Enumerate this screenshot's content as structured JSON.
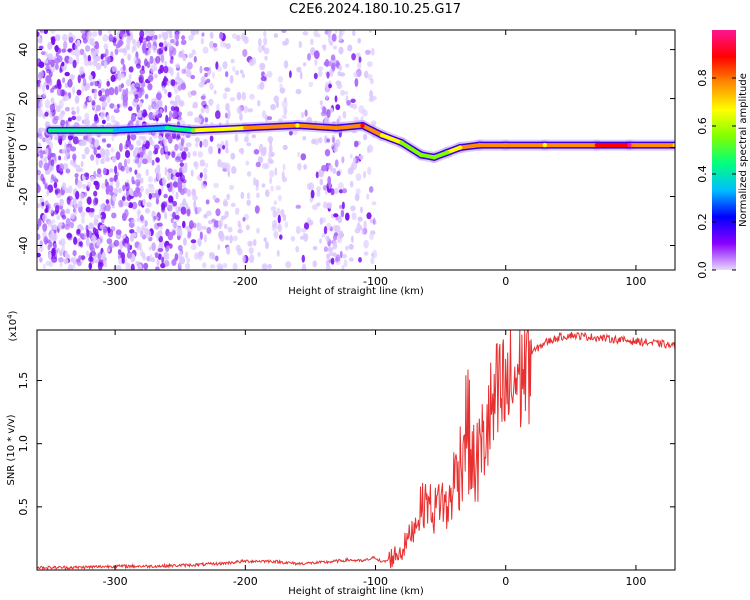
{
  "title": "C2E6.2024.180.10.25.G17",
  "chart_data": [
    {
      "type": "heatmap",
      "xlabel": "Height of straight line (km)",
      "ylabel": "Frequency (Hz)",
      "xlim": [
        -360,
        130
      ],
      "ylim": [
        -50,
        48
      ],
      "xticks": [
        -300,
        -200,
        -100,
        0,
        100
      ],
      "yticks": [
        -40,
        -20,
        0,
        20,
        40
      ],
      "colorbar": {
        "label": "Normalized spectral amplitude",
        "range": [
          0.0,
          1.0
        ],
        "ticks": [
          "0.0",
          "0.2",
          "0.4",
          "0.6",
          "0.8"
        ],
        "colors": [
          "#e8d8ff",
          "#8a00ff",
          "#0000ff",
          "#00bfff",
          "#00ff7f",
          "#7fff00",
          "#ffff00",
          "#ff8c00",
          "#ff0000",
          "#ff1493"
        ]
      },
      "ridge": [
        {
          "x": -350,
          "y": 7,
          "amp": 0.45
        },
        {
          "x": -300,
          "y": 7,
          "amp": 0.35
        },
        {
          "x": -260,
          "y": 8,
          "amp": 0.4
        },
        {
          "x": -240,
          "y": 7,
          "amp": 0.55
        },
        {
          "x": -200,
          "y": 8,
          "amp": 0.75
        },
        {
          "x": -160,
          "y": 9,
          "amp": 0.7
        },
        {
          "x": -130,
          "y": 8,
          "amp": 0.8
        },
        {
          "x": -110,
          "y": 9,
          "amp": 0.85
        },
        {
          "x": -95,
          "y": 5,
          "amp": 0.7
        },
        {
          "x": -80,
          "y": 2,
          "amp": 0.6
        },
        {
          "x": -65,
          "y": -3,
          "amp": 0.55
        },
        {
          "x": -55,
          "y": -4,
          "amp": 0.5
        },
        {
          "x": -45,
          "y": -2,
          "amp": 0.6
        },
        {
          "x": -35,
          "y": 0,
          "amp": 0.7
        },
        {
          "x": -20,
          "y": 1,
          "amp": 0.8
        },
        {
          "x": 0,
          "y": 1,
          "amp": 0.75
        },
        {
          "x": 30,
          "y": 1,
          "amp": 0.7
        },
        {
          "x": 70,
          "y": 1,
          "amp": 0.85
        },
        {
          "x": 95,
          "y": 1,
          "amp": 0.95
        },
        {
          "x": 130,
          "y": 1,
          "amp": 0.7
        }
      ]
    },
    {
      "type": "line",
      "xlabel": "Height of straight line (km)",
      "ylabel": "SNR (10 * v/v)",
      "yscale_label": "(x10",
      "yscale_exp": "4",
      "xlim": [
        -360,
        130
      ],
      "ylim": [
        0,
        1.9
      ],
      "xticks": [
        -300,
        -200,
        -100,
        0,
        100
      ],
      "yticks": [
        0.5,
        1.0,
        1.5
      ],
      "ytick_labels": [
        "0.5",
        "1.0",
        "1.5"
      ],
      "series": [
        {
          "color": "#e83030",
          "x": [
            -360,
            -330,
            -300,
            -270,
            -240,
            -220,
            -200,
            -180,
            -160,
            -140,
            -120,
            -110,
            -100,
            -95,
            -90,
            -85,
            -80,
            -75,
            -70,
            -65,
            -60,
            -55,
            -50,
            -45,
            -40,
            -35,
            -30,
            -25,
            -20,
            -15,
            -10,
            -5,
            0,
            10,
            20,
            30,
            40,
            50,
            60,
            70,
            80,
            90,
            100,
            110,
            120,
            130
          ],
          "y": [
            0.02,
            0.02,
            0.03,
            0.03,
            0.04,
            0.05,
            0.07,
            0.07,
            0.05,
            0.06,
            0.08,
            0.07,
            0.1,
            0.06,
            0.08,
            0.12,
            0.15,
            0.25,
            0.35,
            0.5,
            0.55,
            0.45,
            0.6,
            0.45,
            0.7,
            0.85,
            1.2,
            0.8,
            0.9,
            1.1,
            1.25,
            1.35,
            1.4,
            1.55,
            1.72,
            1.8,
            1.84,
            1.86,
            1.85,
            1.84,
            1.83,
            1.82,
            1.81,
            1.8,
            1.79,
            1.77
          ]
        }
      ]
    }
  ]
}
